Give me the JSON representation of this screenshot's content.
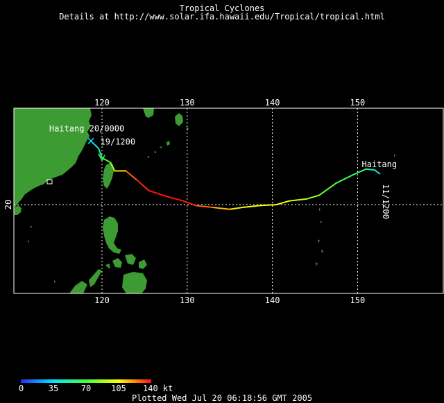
{
  "header": {
    "title": "Tropical Cyclones",
    "subtitle": "Details at http://www.solar.ifa.hawaii.edu/Tropical/tropical.html"
  },
  "map": {
    "lon_range": [
      110,
      160
    ],
    "lat_range": [
      10,
      30
    ],
    "lon_ticks": [
      "120",
      "130",
      "140",
      "150"
    ],
    "lat_ticks": [
      "20"
    ],
    "colors": {
      "background": "#000000",
      "land": "#3c9b32",
      "grid": "#ffffff"
    }
  },
  "storm": {
    "name": "Haitang",
    "track": [
      {
        "lon": 152.6,
        "lat": 23.3,
        "kt": 35
      },
      {
        "lon": 152.0,
        "lat": 23.7,
        "kt": 45
      },
      {
        "lon": 151.0,
        "lat": 23.8,
        "kt": 60
      },
      {
        "lon": 149.5,
        "lat": 23.2,
        "kt": 65
      },
      {
        "lon": 147.5,
        "lat": 22.3,
        "kt": 70
      },
      {
        "lon": 145.5,
        "lat": 21.0,
        "kt": 80
      },
      {
        "lon": 144.0,
        "lat": 20.6,
        "kt": 90
      },
      {
        "lon": 142.0,
        "lat": 20.4,
        "kt": 100
      },
      {
        "lon": 140.5,
        "lat": 20.0,
        "kt": 105
      },
      {
        "lon": 138.5,
        "lat": 19.9,
        "kt": 105
      },
      {
        "lon": 136.5,
        "lat": 19.7,
        "kt": 105
      },
      {
        "lon": 135.0,
        "lat": 19.5,
        "kt": 110
      },
      {
        "lon": 133.0,
        "lat": 19.7,
        "kt": 120
      },
      {
        "lon": 131.0,
        "lat": 19.9,
        "kt": 135
      },
      {
        "lon": 129.5,
        "lat": 20.4,
        "kt": 140
      },
      {
        "lon": 127.5,
        "lat": 20.9,
        "kt": 140
      },
      {
        "lon": 125.5,
        "lat": 21.5,
        "kt": 140
      },
      {
        "lon": 124.0,
        "lat": 22.7,
        "kt": 135
      },
      {
        "lon": 122.8,
        "lat": 23.6,
        "kt": 120
      },
      {
        "lon": 121.5,
        "lat": 23.6,
        "kt": 100
      },
      {
        "lon": 121.0,
        "lat": 24.5,
        "kt": 80
      },
      {
        "lon": 120.0,
        "lat": 25.0,
        "kt": 65
      },
      {
        "lon": 119.6,
        "lat": 26.0,
        "kt": 45
      },
      {
        "lon": 118.7,
        "lat": 26.8,
        "kt": 35
      }
    ],
    "labels": [
      {
        "text": "Haitang",
        "lon": 150.5,
        "lat": 24.0,
        "kind": "name"
      },
      {
        "text": "11/1200",
        "lon": 153.0,
        "lat": 22.2,
        "kind": "time"
      },
      {
        "text": "Haitang 20/0000",
        "lon": 113.8,
        "lat": 27.8,
        "kind": "time"
      },
      {
        "text": "19/1200",
        "lon": 119.8,
        "lat": 26.4,
        "kind": "time"
      }
    ]
  },
  "legend": {
    "ticks": [
      "0",
      "35",
      "70",
      "105",
      "140 kt"
    ],
    "range": [
      0,
      140
    ]
  },
  "footer": {
    "text": "Plotted Wed Jul 20 06:18:56 GMT 2005"
  }
}
